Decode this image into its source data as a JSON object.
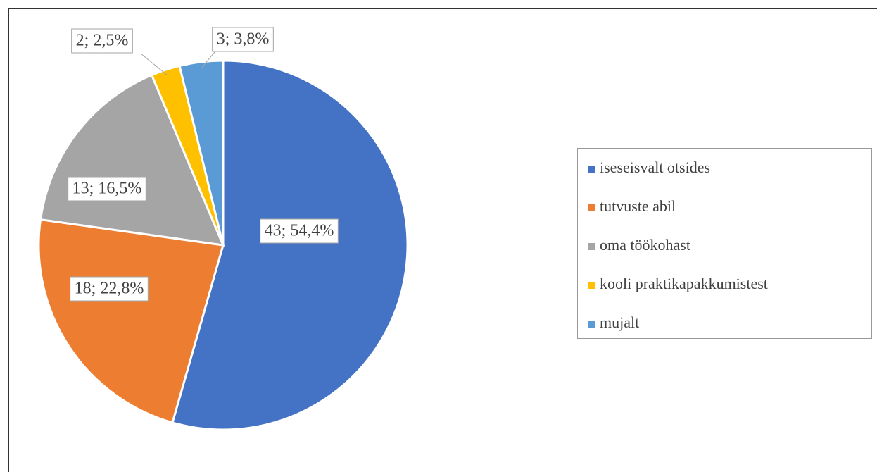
{
  "chart_data": {
    "type": "pie",
    "categories": [
      "iseseisvalt otsides",
      "tutvuste abil",
      "oma töökohast",
      "kooli praktikapakkumistest",
      "mujalt"
    ],
    "values": [
      43,
      18,
      13,
      2,
      3
    ],
    "value_labels": [
      "43; 54,4%",
      "18; 22,8%",
      "13; 16,5%",
      "2; 2,5%",
      "3; 3,8%"
    ],
    "colors": [
      "#4472c4",
      "#ed7d31",
      "#a5a5a5",
      "#ffc000",
      "#5b9bd5"
    ],
    "legend": "right"
  }
}
